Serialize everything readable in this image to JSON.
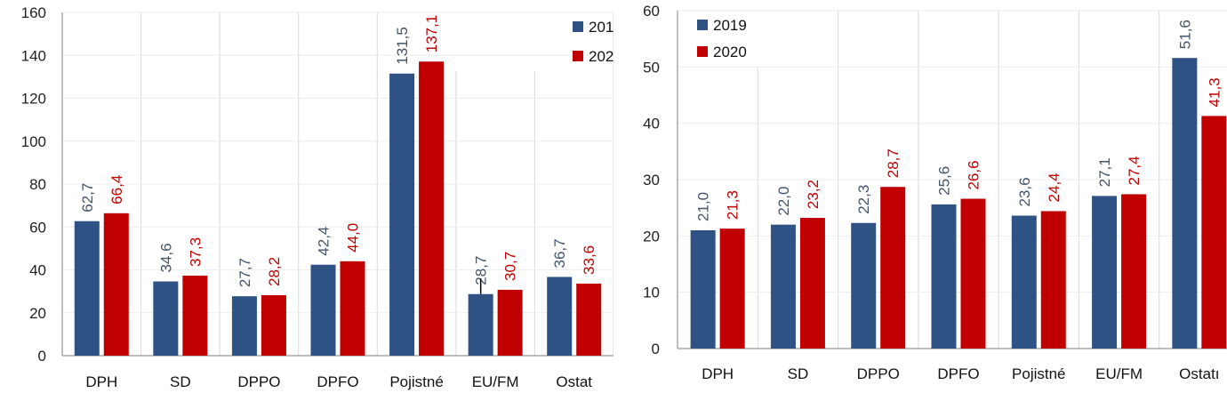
{
  "colors": {
    "s2019": "#2e5283",
    "s2020": "#c00000",
    "grid": "#d9d9d9",
    "axis": "#7f7f7f"
  },
  "chart_data": [
    {
      "type": "bar",
      "categories": [
        "DPH",
        "SD",
        "DPPO",
        "DPFO",
        "Pojistné",
        "EU/FM",
        "Ostat"
      ],
      "series": [
        {
          "name": "201",
          "values": [
            62.7,
            34.6,
            27.7,
            42.4,
            131.5,
            28.7,
            36.7
          ],
          "labels": [
            "62,7",
            "34,6",
            "27,7",
            "42,4",
            "131,5",
            "28,7",
            "36,7"
          ]
        },
        {
          "name": "202",
          "values": [
            66.4,
            37.3,
            28.2,
            44.0,
            137.1,
            30.7,
            33.6
          ],
          "labels": [
            "66,4",
            "37,3",
            "28,2",
            "44,0",
            "137,1",
            "30,7",
            "33,6"
          ]
        }
      ],
      "yticks": [
        "0",
        "20",
        "40",
        "60",
        "80",
        "100",
        "120",
        "140",
        "160"
      ],
      "ylim": [
        0,
        160
      ],
      "grid": true,
      "legend": "top-right",
      "xlabel": "",
      "ylabel": ""
    },
    {
      "type": "bar",
      "categories": [
        "DPH",
        "SD",
        "DPPO",
        "DPFO",
        "Pojistné",
        "EU/FM",
        "Ostatı"
      ],
      "series": [
        {
          "name": "2019",
          "values": [
            21.0,
            22.0,
            22.3,
            25.6,
            23.6,
            27.1,
            51.6
          ],
          "labels": [
            "21,0",
            "22,0",
            "22,3",
            "25,6",
            "23,6",
            "27,1",
            "51,6"
          ]
        },
        {
          "name": "2020",
          "values": [
            21.3,
            23.2,
            28.7,
            26.6,
            24.4,
            27.4,
            41.3
          ],
          "labels": [
            "21,3",
            "23,2",
            "28,7",
            "26,6",
            "24,4",
            "27,4",
            "41,3"
          ]
        }
      ],
      "yticks": [
        "0",
        "10",
        "20",
        "30",
        "40",
        "50",
        "60"
      ],
      "ylim": [
        0,
        60
      ],
      "grid": true,
      "legend": "top-left",
      "xlabel": "",
      "ylabel": ""
    }
  ]
}
